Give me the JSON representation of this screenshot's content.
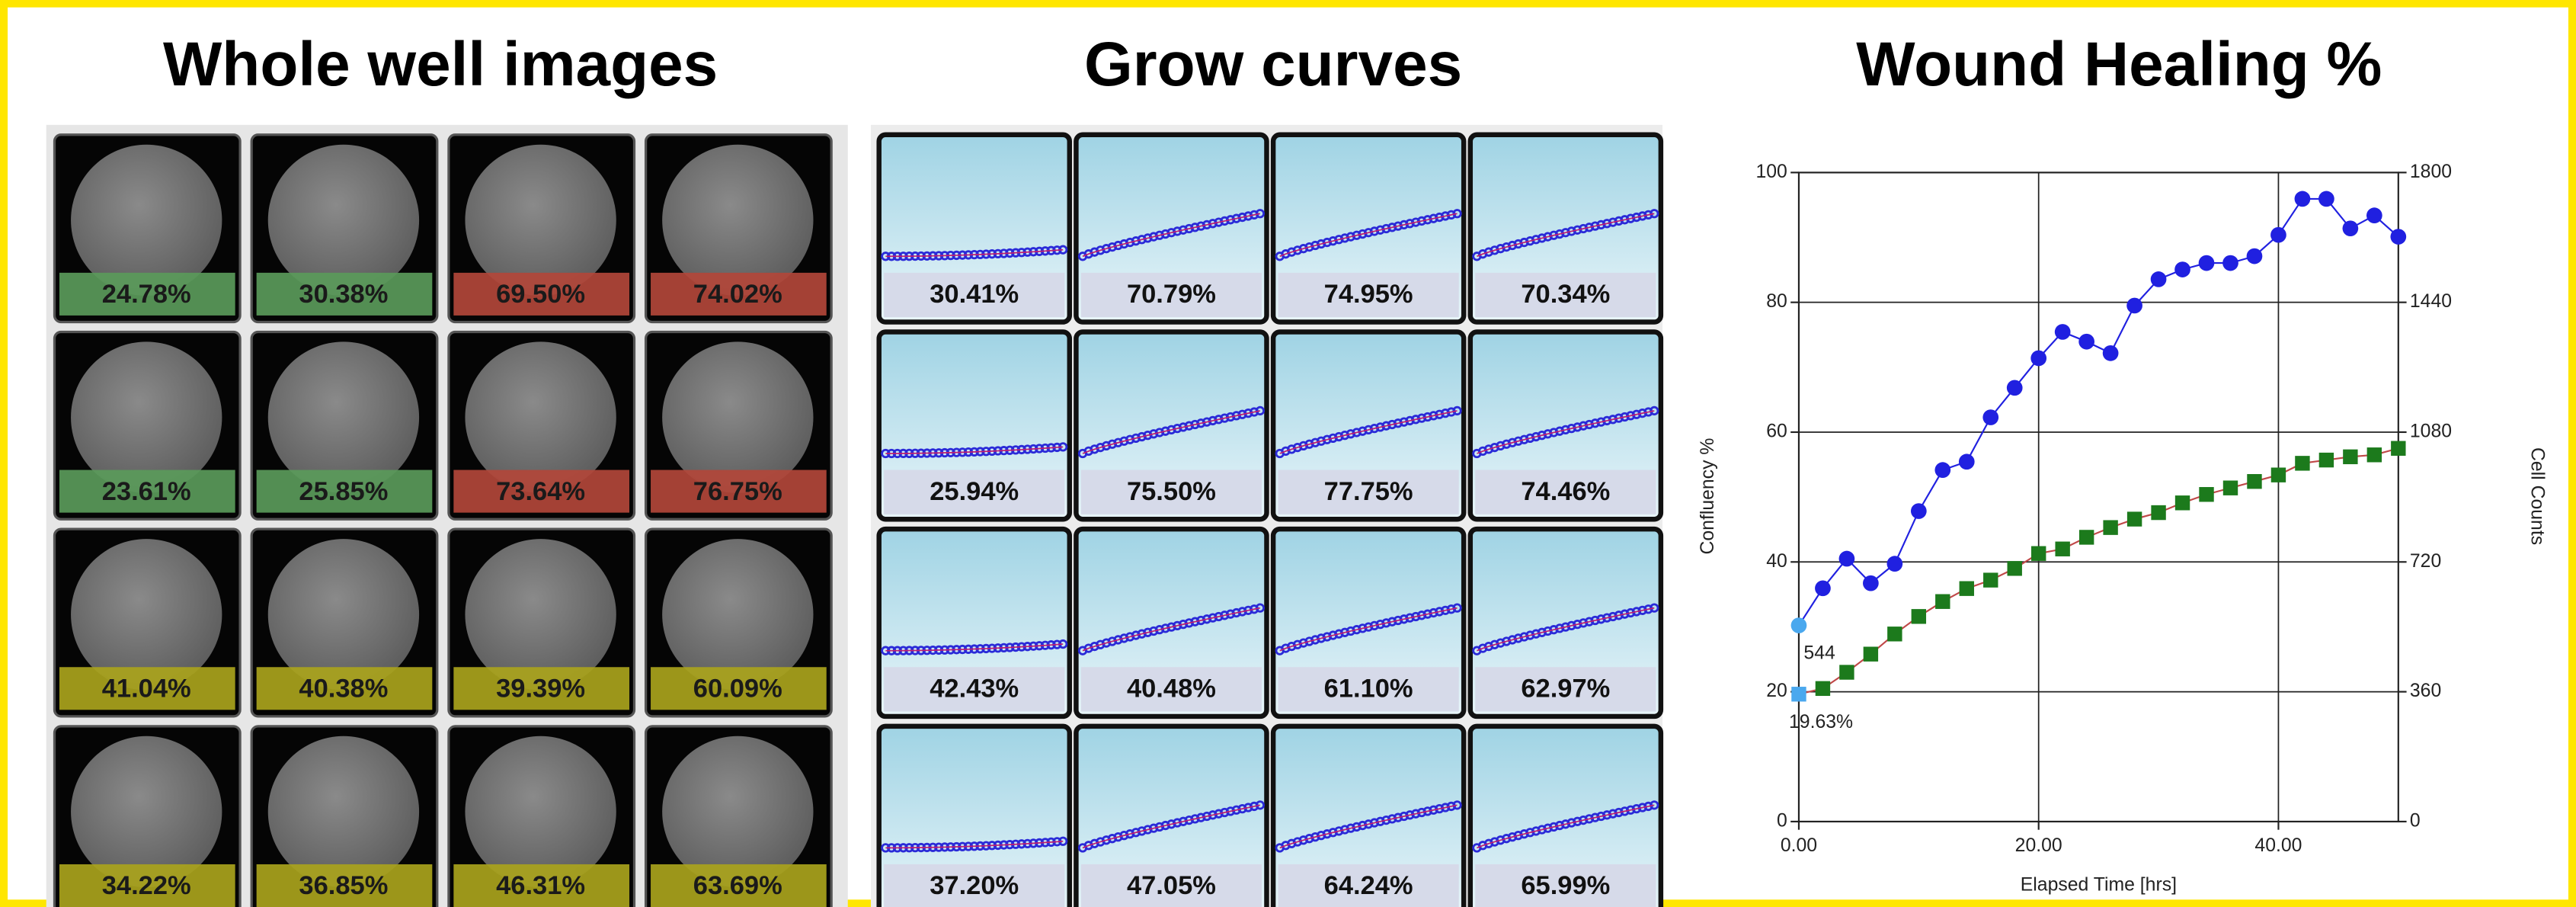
{
  "whole_well": {
    "title": "Whole well images",
    "wells": [
      {
        "label": "24.78%",
        "color": "#5a9a5a"
      },
      {
        "label": "30.38%",
        "color": "#5a9a5a"
      },
      {
        "label": "69.50%",
        "color": "#b2463a"
      },
      {
        "label": "74.02%",
        "color": "#b2463a"
      },
      {
        "label": "23.61%",
        "color": "#5a9a5a"
      },
      {
        "label": "25.85%",
        "color": "#5a9a5a"
      },
      {
        "label": "73.64%",
        "color": "#b2463a"
      },
      {
        "label": "76.75%",
        "color": "#b2463a"
      },
      {
        "label": "41.04%",
        "color": "#a9a31c"
      },
      {
        "label": "40.38%",
        "color": "#a9a31c"
      },
      {
        "label": "39.39%",
        "color": "#a9a31c"
      },
      {
        "label": "60.09%",
        "color": "#a9a31c"
      },
      {
        "label": "34.22%",
        "color": "#a9a31c"
      },
      {
        "label": "36.85%",
        "color": "#a9a31c"
      },
      {
        "label": "46.31%",
        "color": "#a9a31c"
      },
      {
        "label": "63.69%",
        "color": "#a9a31c"
      }
    ]
  },
  "grow_curves": {
    "title": "Grow curves",
    "wells": [
      "30.41%",
      "70.79%",
      "74.95%",
      "70.34%",
      "25.94%",
      "75.50%",
      "77.75%",
      "74.46%",
      "42.43%",
      "40.48%",
      "61.10%",
      "62.97%",
      "37.20%",
      "47.05%",
      "64.24%",
      "65.99%"
    ]
  },
  "chart_data": {
    "type": "line",
    "title": "Wound Healing %",
    "x_label": "Elapsed Time [hrs]",
    "y_label": "Confluency %",
    "y2_label": "Cell Counts",
    "x": [
      0,
      2,
      4,
      6,
      8,
      10,
      12,
      14,
      16,
      18,
      20,
      22,
      24,
      26,
      28,
      30,
      32,
      34,
      36,
      38,
      40,
      42,
      44,
      46,
      48,
      50
    ],
    "xlim": [
      0,
      50
    ],
    "xticks": [
      {
        "value": 0,
        "label": "0.00"
      },
      {
        "value": 20,
        "label": "20.00"
      },
      {
        "value": 40,
        "label": "40.00"
      }
    ],
    "ylim": [
      0,
      100
    ],
    "yticks": [
      0,
      20,
      40,
      60,
      80,
      100
    ],
    "y2lim": [
      0,
      1800
    ],
    "y2ticks": [
      0,
      360,
      720,
      1080,
      1440,
      1800
    ],
    "grid": true,
    "series": [
      {
        "color": "#1c7a1c",
        "values": [
          19.63,
          20.5,
          23.0,
          25.8,
          28.9,
          31.6,
          33.9,
          35.9,
          37.2,
          39.0,
          41.3,
          42.0,
          43.8,
          45.3,
          46.6,
          47.6,
          49.1,
          50.4,
          51.4,
          52.4,
          53.4,
          55.2,
          55.7,
          56.2,
          56.5,
          57.5
        ]
      },
      {
        "color": "#2020e0",
        "axis": "y2",
        "values": [
          544,
          647,
          729,
          661,
          715,
          861,
          975,
          998,
          1121,
          1203,
          1285,
          1358,
          1331,
          1299,
          1431,
          1504,
          1531,
          1549,
          1549,
          1568,
          1627,
          1727,
          1727,
          1645,
          1681,
          1622
        ]
      }
    ],
    "annotations": [
      "544",
      "19.63%"
    ]
  }
}
